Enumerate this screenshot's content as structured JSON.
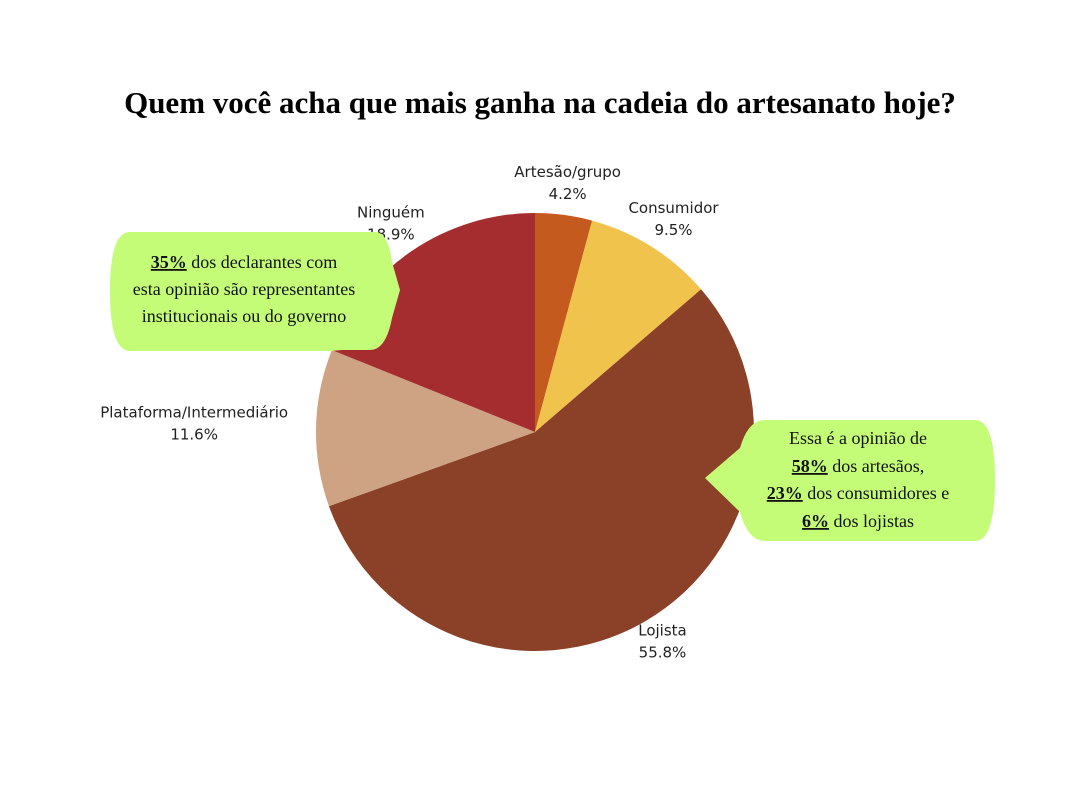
{
  "chart_data": {
    "type": "pie",
    "title": "Quem você acha que mais ganha na cadeia do artesanato hoje?",
    "categories": [
      "Artesão/grupo",
      "Consumidor",
      "Lojista",
      "Plataforma/Intermediário",
      "Ninguém"
    ],
    "values": [
      4.2,
      9.5,
      55.8,
      11.6,
      18.9
    ],
    "value_labels": [
      "4.2%",
      "9.5%",
      "55.8%",
      "11.6%",
      "18.9%"
    ],
    "colors": [
      "#c55a1e",
      "#f0c44c",
      "#8b4127",
      "#cda383",
      "#a52d30"
    ],
    "annotations": [
      {
        "lines": [
          [
            {
              "text": "35%",
              "emphasis": true
            },
            {
              "text": " dos declarantes com"
            }
          ],
          [
            {
              "text": "esta opinião são representantes"
            }
          ],
          [
            {
              "text": "institucionais ou do governo"
            }
          ]
        ]
      },
      {
        "lines": [
          [
            {
              "text": "Essa é a opinião de"
            }
          ],
          [
            {
              "text": "58%",
              "emphasis": true
            },
            {
              "text": " dos artesãos,"
            }
          ],
          [
            {
              "text": "23%",
              "emphasis": true
            },
            {
              "text": " dos consumidores e"
            }
          ],
          [
            {
              "text": "6%",
              "emphasis": true
            },
            {
              "text": " dos lojistas"
            }
          ]
        ]
      }
    ]
  }
}
